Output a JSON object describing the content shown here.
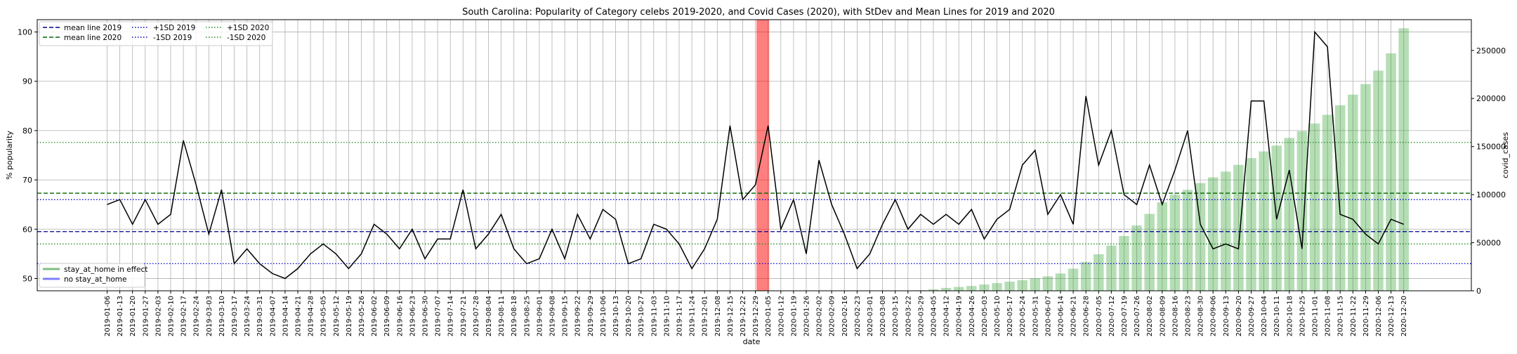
{
  "chart_data": {
    "type": "line",
    "title": "South Carolina: Popularity of Category celebs 2019-2020, and Covid Cases (2020), with StDev and Mean Lines for 2019 and 2020",
    "xlabel": "date",
    "ylabel": "% popularity",
    "y2label": "covid_cases",
    "ylim": [
      47.5,
      102.5
    ],
    "y2lim": [
      0,
      282000
    ],
    "yticks": [
      50,
      60,
      70,
      80,
      90,
      100
    ],
    "y2ticks": [
      0,
      50000,
      100000,
      150000,
      200000,
      250000
    ],
    "y2ticklabels": [
      "0",
      "50000",
      "100000",
      "150000",
      "200000",
      "250000"
    ],
    "grid": true,
    "legend_position": "top-left",
    "stay_at_home_week": "2019-12-29",
    "x": [
      "2019-01-06",
      "2019-01-13",
      "2019-01-20",
      "2019-01-27",
      "2019-02-03",
      "2019-02-10",
      "2019-02-17",
      "2019-02-24",
      "2019-03-03",
      "2019-03-10",
      "2019-03-17",
      "2019-03-24",
      "2019-03-31",
      "2019-04-07",
      "2019-04-14",
      "2019-04-21",
      "2019-04-28",
      "2019-05-05",
      "2019-05-12",
      "2019-05-19",
      "2019-05-26",
      "2019-06-02",
      "2019-06-09",
      "2019-06-16",
      "2019-06-23",
      "2019-06-30",
      "2019-07-07",
      "2019-07-14",
      "2019-07-21",
      "2019-07-28",
      "2019-08-04",
      "2019-08-11",
      "2019-08-18",
      "2019-08-25",
      "2019-09-01",
      "2019-09-08",
      "2019-09-15",
      "2019-09-22",
      "2019-09-29",
      "2019-10-06",
      "2019-10-13",
      "2019-10-20",
      "2019-10-27",
      "2019-11-03",
      "2019-11-10",
      "2019-11-17",
      "2019-11-24",
      "2019-12-01",
      "2019-12-08",
      "2019-12-15",
      "2019-12-22",
      "2019-12-29",
      "2020-01-05",
      "2020-01-12",
      "2020-01-19",
      "2020-01-26",
      "2020-02-02",
      "2020-02-09",
      "2020-02-16",
      "2020-02-23",
      "2020-03-01",
      "2020-03-08",
      "2020-03-15",
      "2020-03-22",
      "2020-03-29",
      "2020-04-05",
      "2020-04-12",
      "2020-04-19",
      "2020-04-26",
      "2020-05-03",
      "2020-05-10",
      "2020-05-17",
      "2020-05-24",
      "2020-05-31",
      "2020-06-07",
      "2020-06-14",
      "2020-06-21",
      "2020-06-28",
      "2020-07-05",
      "2020-07-12",
      "2020-07-19",
      "2020-07-26",
      "2020-08-02",
      "2020-08-09",
      "2020-08-16",
      "2020-08-23",
      "2020-08-30",
      "2020-09-06",
      "2020-09-13",
      "2020-09-20",
      "2020-09-27",
      "2020-10-04",
      "2020-10-11",
      "2020-10-18",
      "2020-10-25",
      "2020-11-01",
      "2020-11-08",
      "2020-11-15",
      "2020-11-22",
      "2020-11-29",
      "2020-12-06",
      "2020-12-13",
      "2020-12-20"
    ],
    "series": [
      {
        "type": "line",
        "color": "#000000",
        "values": [
          65,
          66,
          61,
          66,
          61,
          63,
          78,
          69,
          59,
          68,
          53,
          56,
          53,
          51,
          50,
          52,
          55,
          57,
          55,
          52,
          55,
          61,
          59,
          56,
          60,
          54,
          58,
          58,
          68,
          56,
          59,
          63,
          56,
          53,
          54,
          60,
          54,
          63,
          58,
          64,
          62,
          53,
          54,
          61,
          60,
          57,
          52,
          56,
          62,
          81,
          66,
          69,
          81,
          60,
          66,
          55,
          74,
          65,
          59,
          52,
          55,
          61,
          66,
          60,
          63,
          61,
          63,
          61,
          64,
          58,
          62,
          64,
          73,
          76,
          63,
          67,
          61,
          87,
          73,
          80,
          67,
          65,
          73,
          65,
          72,
          80,
          61,
          56,
          57,
          56,
          86,
          86,
          62,
          72,
          56,
          100,
          97,
          63,
          62,
          59,
          57,
          62,
          61
        ]
      },
      {
        "type": "bar",
        "name": "covid_cases",
        "color": "#2ca02c",
        "values": [
          0,
          0,
          0,
          0,
          0,
          0,
          0,
          0,
          0,
          0,
          0,
          0,
          0,
          0,
          0,
          0,
          0,
          0,
          0,
          0,
          0,
          0,
          0,
          0,
          0,
          0,
          0,
          0,
          0,
          0,
          0,
          0,
          0,
          0,
          0,
          0,
          0,
          0,
          0,
          0,
          0,
          0,
          0,
          0,
          0,
          0,
          0,
          0,
          0,
          0,
          0,
          0,
          0,
          0,
          0,
          0,
          0,
          0,
          0,
          0,
          0,
          0,
          0,
          0,
          500,
          1500,
          3000,
          4000,
          5000,
          6500,
          8000,
          9500,
          11000,
          13000,
          15000,
          18000,
          23000,
          30000,
          38000,
          47000,
          57000,
          68000,
          80000,
          92000,
          100000,
          105000,
          112000,
          118000,
          124000,
          131000,
          138000,
          145000,
          151000,
          159000,
          166000,
          174000,
          183000,
          193000,
          204000,
          215000,
          229000,
          247000,
          273000
        ]
      }
    ],
    "reference_lines": [
      {
        "name": "mean line 2019",
        "value": 59.5,
        "color": "#00008b",
        "style": "dashed"
      },
      {
        "name": "mean line 2020",
        "value": 67.3,
        "color": "#006400",
        "style": "dashed"
      },
      {
        "name": "+1SD 2019",
        "value": 66.0,
        "color": "#0000cd",
        "style": "dotted"
      },
      {
        "name": "-1SD 2019",
        "value": 53.0,
        "color": "#0000cd",
        "style": "dotted"
      },
      {
        "name": "+1SD 2020",
        "value": 77.6,
        "color": "#228b22",
        "style": "dotted"
      },
      {
        "name": "-1SD 2020",
        "value": 57.0,
        "color": "#228b22",
        "style": "dotted"
      }
    ],
    "legend_top": [
      {
        "label": "mean line 2019",
        "color": "#00008b",
        "style": "dashed"
      },
      {
        "label": "mean line 2020",
        "color": "#006400",
        "style": "dashed"
      },
      {
        "label": "+1SD 2019",
        "color": "#0000cd",
        "style": "dotted"
      },
      {
        "label": "-1SD 2019",
        "color": "#0000cd",
        "style": "dotted"
      },
      {
        "label": "+1SD 2020",
        "color": "#228b22",
        "style": "dotted"
      },
      {
        "label": "-1SD 2020",
        "color": "#228b22",
        "style": "dotted"
      }
    ],
    "legend_bottom": [
      {
        "label": "stay_at_home in effect",
        "color": "#7fbf7f"
      },
      {
        "label": "no stay_at_home",
        "color": "#7f7fff"
      }
    ]
  }
}
